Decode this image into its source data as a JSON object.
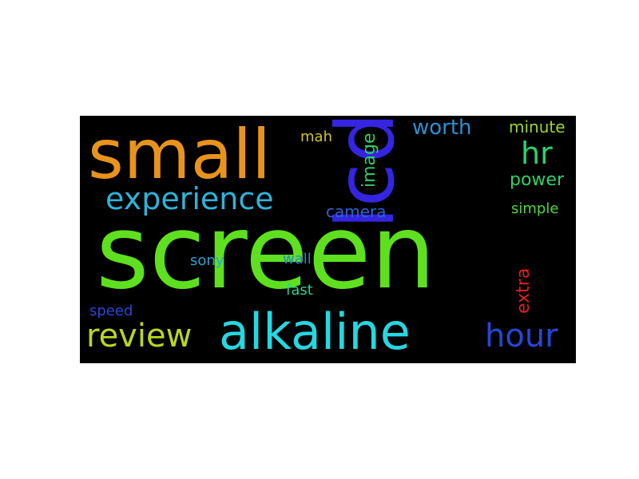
{
  "wordcloud": {
    "words": [
      {
        "text": "screen",
        "color": "#5ee01f"
      },
      {
        "text": "lcd",
        "color": "#3524e0"
      },
      {
        "text": "small",
        "color": "#e8941c"
      },
      {
        "text": "alkaline",
        "color": "#25d7e0"
      },
      {
        "text": "experience",
        "color": "#2fb3da"
      },
      {
        "text": "review",
        "color": "#b8d81e"
      },
      {
        "text": "hour",
        "color": "#2547d8"
      },
      {
        "text": "hr",
        "color": "#2ad26a"
      },
      {
        "text": "worth",
        "color": "#2a8fd0"
      },
      {
        "text": "image",
        "color": "#2ad26a"
      },
      {
        "text": "mah",
        "color": "#d2c71f"
      },
      {
        "text": "minute",
        "color": "#9bd62a"
      },
      {
        "text": "power",
        "color": "#2ad26a"
      },
      {
        "text": "camera",
        "color": "#2a64d4"
      },
      {
        "text": "simple",
        "color": "#4fd63a"
      },
      {
        "text": "sony",
        "color": "#2aa2d2"
      },
      {
        "text": "wall",
        "color": "#2a84d0"
      },
      {
        "text": "fast",
        "color": "#2ad29a"
      },
      {
        "text": "extra",
        "color": "#e01f1f"
      },
      {
        "text": "speed",
        "color": "#2547d8"
      }
    ]
  }
}
